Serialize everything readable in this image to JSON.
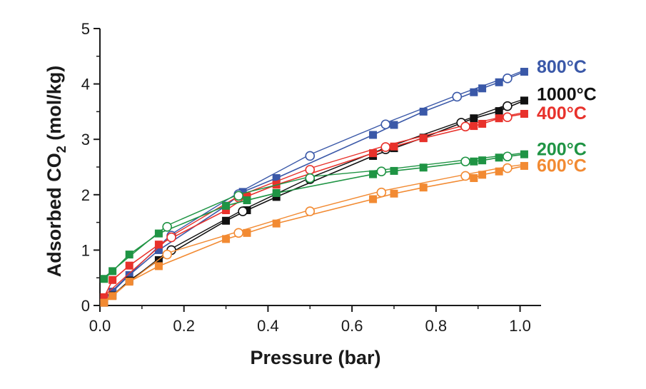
{
  "chart_data": {
    "type": "line",
    "title": "",
    "xlabel": "Pressure (bar)",
    "ylabel_main": "Adsorbed CO",
    "ylabel_sub": "2",
    "ylabel_unit": " (mol/kg)",
    "xlim": [
      0,
      1.05
    ],
    "ylim": [
      0,
      5
    ],
    "xticks": [
      "0.0",
      "0.2",
      "0.4",
      "0.6",
      "0.8",
      "1.0"
    ],
    "yticks": [
      "0",
      "1",
      "2",
      "3",
      "4",
      "5"
    ],
    "grid": false,
    "legend": "inline-right",
    "series": [
      {
        "name": "800°C",
        "color": "#3a58a8",
        "adsorption": [
          [
            0.01,
            0.1
          ],
          [
            0.03,
            0.25
          ],
          [
            0.07,
            0.55
          ],
          [
            0.14,
            1.0
          ],
          [
            0.3,
            1.8
          ],
          [
            0.34,
            2.05
          ],
          [
            0.42,
            2.3
          ],
          [
            0.65,
            3.08
          ],
          [
            0.7,
            3.26
          ],
          [
            0.77,
            3.5
          ],
          [
            0.89,
            3.85
          ],
          [
            0.91,
            3.92
          ],
          [
            0.95,
            4.03
          ],
          [
            1.01,
            4.22
          ]
        ],
        "desorption": [
          [
            0.17,
            1.26
          ],
          [
            0.33,
            2.01
          ],
          [
            0.5,
            2.7
          ],
          [
            0.68,
            3.27
          ],
          [
            0.85,
            3.77
          ],
          [
            0.97,
            4.1
          ]
        ]
      },
      {
        "name": "1000°C",
        "color": "#111111",
        "adsorption": [
          [
            0.01,
            0.05
          ],
          [
            0.03,
            0.18
          ],
          [
            0.07,
            0.45
          ],
          [
            0.14,
            0.82
          ],
          [
            0.3,
            1.53
          ],
          [
            0.35,
            1.72
          ],
          [
            0.42,
            1.96
          ],
          [
            0.65,
            2.7
          ],
          [
            0.7,
            2.84
          ],
          [
            0.77,
            3.03
          ],
          [
            0.89,
            3.38
          ],
          [
            0.95,
            3.51
          ],
          [
            1.01,
            3.7
          ]
        ],
        "desorption": [
          [
            0.17,
            1.0
          ],
          [
            0.34,
            1.7
          ],
          [
            0.5,
            2.28
          ],
          [
            0.68,
            2.82
          ],
          [
            0.86,
            3.3
          ],
          [
            0.97,
            3.6
          ]
        ]
      },
      {
        "name": "400°C",
        "color": "#e8312b",
        "adsorption": [
          [
            0.01,
            0.15
          ],
          [
            0.03,
            0.46
          ],
          [
            0.07,
            0.72
          ],
          [
            0.14,
            1.1
          ],
          [
            0.3,
            1.72
          ],
          [
            0.35,
            1.97
          ],
          [
            0.42,
            2.18
          ],
          [
            0.65,
            2.75
          ],
          [
            0.7,
            2.87
          ],
          [
            0.77,
            3.02
          ],
          [
            0.89,
            3.24
          ],
          [
            0.91,
            3.28
          ],
          [
            0.95,
            3.38
          ],
          [
            1.01,
            3.46
          ]
        ],
        "desorption": [
          [
            0.17,
            1.23
          ],
          [
            0.33,
            1.95
          ],
          [
            0.5,
            2.45
          ],
          [
            0.68,
            2.86
          ],
          [
            0.87,
            3.23
          ],
          [
            0.97,
            3.4
          ]
        ]
      },
      {
        "name": "200°C",
        "color": "#1f9444",
        "adsorption": [
          [
            0.01,
            0.48
          ],
          [
            0.03,
            0.62
          ],
          [
            0.07,
            0.92
          ],
          [
            0.14,
            1.3
          ],
          [
            0.3,
            1.8
          ],
          [
            0.35,
            1.9
          ],
          [
            0.42,
            2.03
          ],
          [
            0.65,
            2.37
          ],
          [
            0.7,
            2.43
          ],
          [
            0.77,
            2.49
          ],
          [
            0.89,
            2.6
          ],
          [
            0.91,
            2.62
          ],
          [
            0.95,
            2.67
          ],
          [
            1.01,
            2.73
          ]
        ],
        "desorption": [
          [
            0.16,
            1.42
          ],
          [
            0.33,
            1.98
          ],
          [
            0.5,
            2.3
          ],
          [
            0.67,
            2.42
          ],
          [
            0.87,
            2.6
          ],
          [
            0.97,
            2.69
          ]
        ]
      },
      {
        "name": "600°C",
        "color": "#f28a32",
        "adsorption": [
          [
            0.01,
            0.05
          ],
          [
            0.03,
            0.17
          ],
          [
            0.07,
            0.43
          ],
          [
            0.14,
            0.71
          ],
          [
            0.3,
            1.2
          ],
          [
            0.35,
            1.31
          ],
          [
            0.42,
            1.48
          ],
          [
            0.65,
            1.92
          ],
          [
            0.7,
            2.02
          ],
          [
            0.77,
            2.13
          ],
          [
            0.89,
            2.3
          ],
          [
            0.91,
            2.36
          ],
          [
            0.95,
            2.42
          ],
          [
            1.01,
            2.52
          ]
        ],
        "desorption": [
          [
            0.16,
            0.92
          ],
          [
            0.33,
            1.31
          ],
          [
            0.5,
            1.7
          ],
          [
            0.67,
            2.04
          ],
          [
            0.87,
            2.34
          ],
          [
            0.97,
            2.48
          ]
        ]
      }
    ],
    "series_label_anchor_y": [
      4.32,
      3.82,
      3.48,
      2.83,
      2.53
    ]
  }
}
